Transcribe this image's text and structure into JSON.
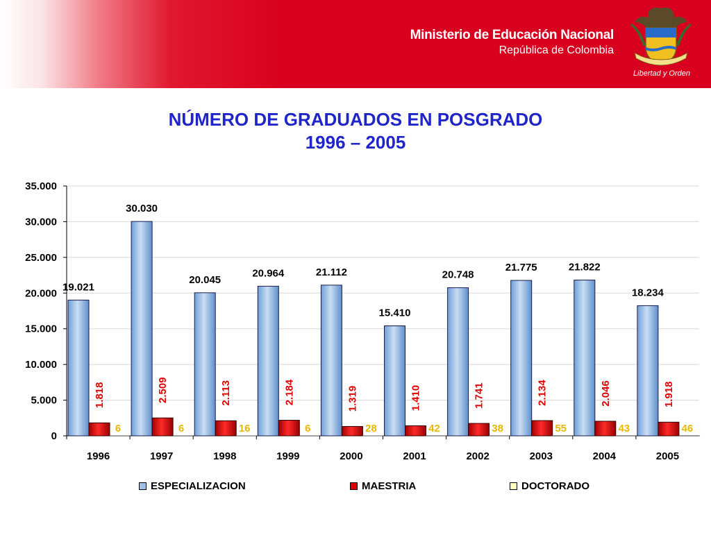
{
  "header": {
    "ministry_name": "Ministerio de Educación Nacional",
    "country": "República de Colombia",
    "motto": "Libertad y Orden"
  },
  "slide": {
    "title_line1": "NÚMERO DE GRADUADOS EN POSGRADO",
    "title_line2": "1996 – 2005"
  },
  "colors": {
    "banner_red": "#d8001e",
    "title_blue": "#1f25c8",
    "especializacion": "#9ec3ea",
    "maestria": "#e00000",
    "doctorado": "#ffffc0",
    "maestria_label": "#e00000",
    "doctorado_label": "#e8b800"
  },
  "chart_data": {
    "type": "bar",
    "categories": [
      "1996",
      "1997",
      "1998",
      "1999",
      "2000",
      "2001",
      "2002",
      "2003",
      "2004",
      "2005"
    ],
    "series": [
      {
        "name": "ESPECIALIZACION",
        "values": [
          19021,
          30030,
          20045,
          20964,
          21112,
          15410,
          20748,
          21775,
          21822,
          18234
        ],
        "labels": [
          "19.021",
          "30.030",
          "20.045",
          "20.964",
          "21.112",
          "15.410",
          "20.748",
          "21.775",
          "21.822",
          "18.234"
        ]
      },
      {
        "name": "MAESTRIA",
        "values": [
          1818,
          2509,
          2113,
          2184,
          1319,
          1410,
          1741,
          2134,
          2046,
          1918
        ],
        "labels": [
          "1.818",
          "2.509",
          "2.113",
          "2.184",
          "1.319",
          "1.410",
          "1.741",
          "2.134",
          "2.046",
          "1.918"
        ]
      },
      {
        "name": "DOCTORADO",
        "values": [
          6,
          6,
          16,
          6,
          28,
          42,
          38,
          55,
          43,
          46
        ],
        "labels": [
          "6",
          "6",
          "16",
          "6",
          "28",
          "42",
          "38",
          "55",
          "43",
          "46"
        ]
      }
    ],
    "ylim": [
      0,
      35000
    ],
    "yticks": [
      0,
      5000,
      10000,
      15000,
      20000,
      25000,
      30000,
      35000
    ],
    "ytick_labels": [
      "0",
      "5.000",
      "10.000",
      "15.000",
      "20.000",
      "25.000",
      "30.000",
      "35.000"
    ],
    "grid": true,
    "legend_position": "bottom"
  }
}
